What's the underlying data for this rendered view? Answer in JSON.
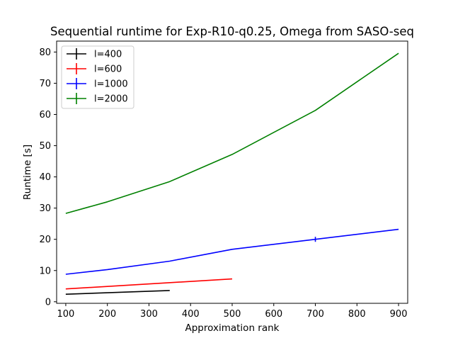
{
  "chart_data": {
    "type": "line",
    "title": "Sequential runtime for Exp-R10-q0.25, Omega from SASO-seq",
    "xlabel": "Approximation rank",
    "ylabel": "Runtime [s]",
    "xlim": [
      78,
      922
    ],
    "ylim": [
      -0.5,
      83.5
    ],
    "x_ticks": [
      100,
      200,
      300,
      400,
      500,
      600,
      700,
      800,
      900
    ],
    "y_ticks": [
      0,
      10,
      20,
      30,
      40,
      50,
      60,
      70,
      80
    ],
    "legend_position": "top-left",
    "grid": false,
    "error_bars": true,
    "series": [
      {
        "name": "l=400",
        "color": "#000000",
        "points": [
          {
            "x": 100,
            "y": 2.4
          },
          {
            "x": 350,
            "y": 3.6
          }
        ]
      },
      {
        "name": "l=600",
        "color": "#ff0000",
        "points": [
          {
            "x": 100,
            "y": 4.1
          },
          {
            "x": 500,
            "y": 7.3
          }
        ]
      },
      {
        "name": "l=1000",
        "color": "#0000ff",
        "points": [
          {
            "x": 100,
            "y": 8.8
          },
          {
            "x": 200,
            "y": 10.3
          },
          {
            "x": 350,
            "y": 13.0
          },
          {
            "x": 500,
            "y": 16.8
          },
          {
            "x": 700,
            "y": 20.0,
            "err": 0.8
          },
          {
            "x": 900,
            "y": 23.2
          }
        ]
      },
      {
        "name": "l=2000",
        "color": "#008000",
        "points": [
          {
            "x": 100,
            "y": 28.3
          },
          {
            "x": 200,
            "y": 32.0
          },
          {
            "x": 350,
            "y": 38.5
          },
          {
            "x": 500,
            "y": 47.2
          },
          {
            "x": 700,
            "y": 61.3
          },
          {
            "x": 900,
            "y": 79.6
          }
        ]
      }
    ]
  }
}
